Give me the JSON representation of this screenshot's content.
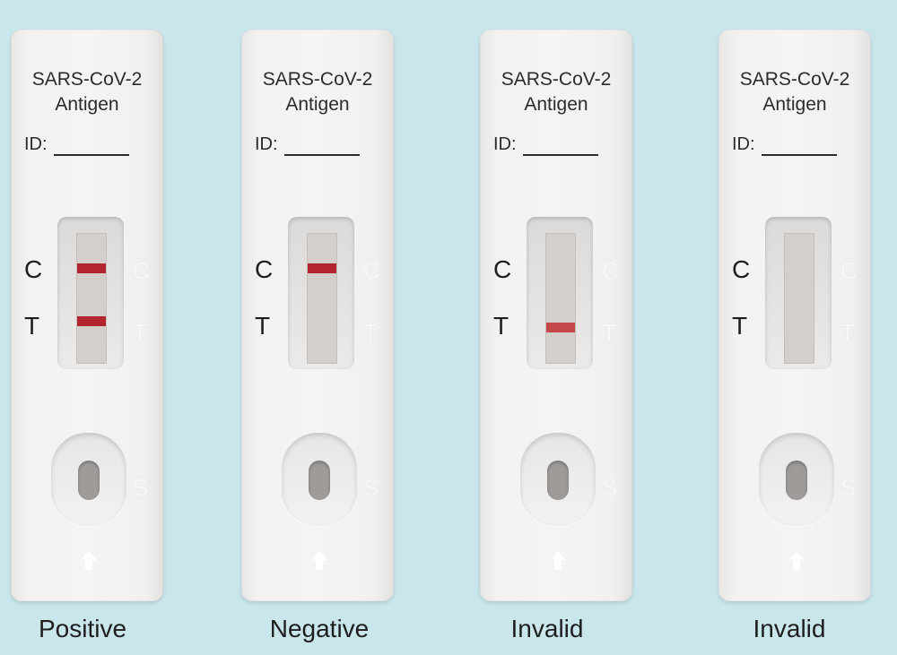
{
  "strips": [
    {
      "title_line1": "SARS-CoV-2",
      "title_line2": "Antigen",
      "id_label": "ID:",
      "c_label": "C",
      "t_label": "T",
      "c_mark": "C",
      "t_mark": "T",
      "s_mark": "S",
      "control_line": true,
      "test_line": true,
      "result": "Positive"
    },
    {
      "title_line1": "SARS-CoV-2",
      "title_line2": "Antigen",
      "id_label": "ID:",
      "c_label": "C",
      "t_label": "T",
      "c_mark": "C",
      "t_mark": "T",
      "s_mark": "S",
      "control_line": true,
      "test_line": false,
      "result": "Negative"
    },
    {
      "title_line1": "SARS-CoV-2",
      "title_line2": "Antigen",
      "id_label": "ID:",
      "c_label": "C",
      "t_label": "T",
      "c_mark": "C",
      "t_mark": "T",
      "s_mark": "S",
      "control_line": false,
      "test_line": true,
      "result": "Invalid"
    },
    {
      "title_line1": "SARS-CoV-2",
      "title_line2": "Antigen",
      "id_label": "ID:",
      "c_label": "C",
      "t_label": "T",
      "c_mark": "C",
      "t_mark": "T",
      "s_mark": "S",
      "control_line": false,
      "test_line": false,
      "result": "Invalid"
    }
  ],
  "colors": {
    "background": "#c9e6ea",
    "line_red": "#b3252e",
    "strip": "#d4cfca"
  },
  "icons": {
    "arrow": "arrow-up-icon"
  }
}
